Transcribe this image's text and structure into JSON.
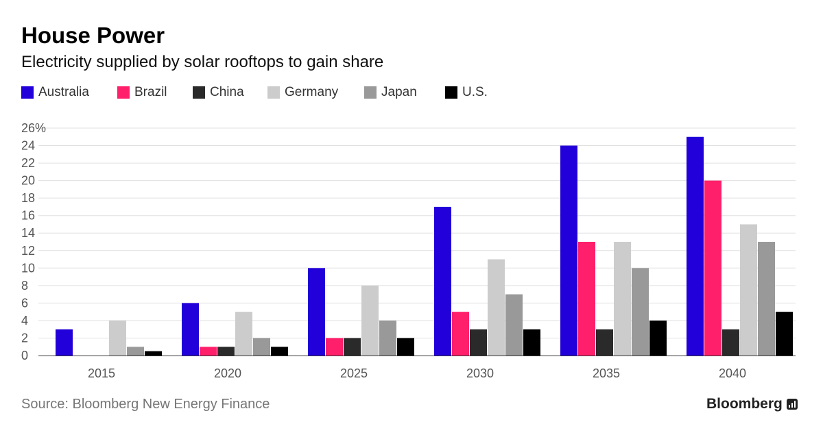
{
  "title": "House Power",
  "subtitle": "Electricity supplied by solar rooftops to gain share",
  "source": "Source: Bloomberg New Energy Finance",
  "brand": "Bloomberg",
  "legend": [
    {
      "label": "Australia",
      "color": "#2200d9"
    },
    {
      "label": "Brazil",
      "color": "#ff1f6b"
    },
    {
      "label": "China",
      "color": "#2a2a2a"
    },
    {
      "label": "Germany",
      "color": "#cccccc"
    },
    {
      "label": "Japan",
      "color": "#999999"
    },
    {
      "label": "U.S.",
      "color": "#000000"
    }
  ],
  "chart_data": {
    "type": "bar",
    "categories": [
      "2015",
      "2020",
      "2025",
      "2030",
      "2035",
      "2040"
    ],
    "series": [
      {
        "name": "Australia",
        "color": "#2200d9",
        "values": [
          3,
          6,
          10,
          17,
          24,
          25
        ]
      },
      {
        "name": "Brazil",
        "color": "#ff1f6b",
        "values": [
          0,
          1,
          2,
          5,
          13,
          20
        ]
      },
      {
        "name": "China",
        "color": "#2a2a2a",
        "values": [
          0,
          1,
          2,
          3,
          3,
          3
        ]
      },
      {
        "name": "Germany",
        "color": "#cccccc",
        "values": [
          4,
          5,
          8,
          11,
          13,
          15
        ]
      },
      {
        "name": "Japan",
        "color": "#999999",
        "values": [
          1,
          2,
          4,
          7,
          10,
          13
        ]
      },
      {
        "name": "U.S.",
        "color": "#000000",
        "values": [
          0.5,
          1,
          2,
          3,
          4,
          5
        ]
      }
    ],
    "yticks": [
      "0",
      "2",
      "4",
      "6",
      "8",
      "10",
      "12",
      "14",
      "16",
      "18",
      "20",
      "22",
      "24",
      "26%"
    ],
    "ylim": [
      0,
      26
    ],
    "grid": true,
    "legend_position": "top-left"
  }
}
